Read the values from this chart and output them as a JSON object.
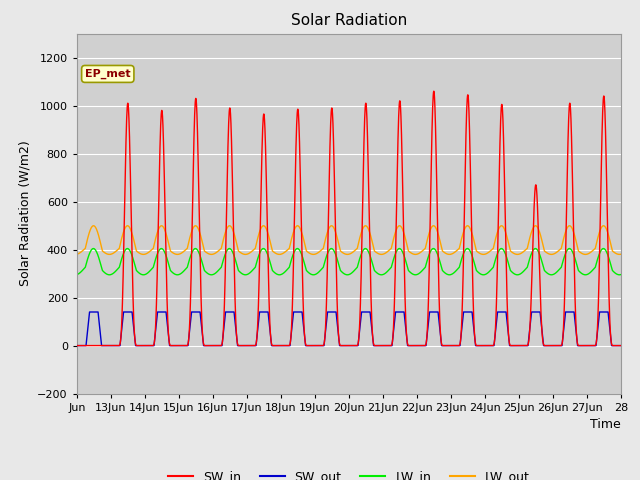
{
  "title": "Solar Radiation",
  "ylabel": "Solar Radiation (W/m2)",
  "xlabel": "Time",
  "ylim": [
    -200,
    1300
  ],
  "yticks": [
    -200,
    0,
    200,
    400,
    600,
    800,
    1000,
    1200
  ],
  "xtick_labels": [
    "Jun",
    "13Jun",
    "14Jun",
    "15Jun",
    "16Jun",
    "17Jun",
    "18Jun",
    "19Jun",
    "20Jun",
    "21Jun",
    "22Jun",
    "23Jun",
    "24Jun",
    "25Jun",
    "26Jun",
    "27Jun",
    "28"
  ],
  "xtick_positions": [
    12,
    13,
    14,
    15,
    16,
    17,
    18,
    19,
    20,
    21,
    22,
    23,
    24,
    25,
    26,
    27,
    28
  ],
  "colors": {
    "SW_in": "#ff0000",
    "SW_out": "#0000cc",
    "LW_in": "#00ee00",
    "LW_out": "#ffa500"
  },
  "sw_in_peaks": [
    0,
    1010,
    980,
    1030,
    990,
    965,
    985,
    990,
    1010,
    1020,
    1060,
    1045,
    1005,
    670,
    1010,
    1040
  ],
  "annotation_text": "EP_met",
  "fig_facecolor": "#e8e8e8",
  "ax_facecolor": "#d0d0d0",
  "grid_color": "#ffffff",
  "title_fontsize": 11,
  "label_fontsize": 9,
  "tick_fontsize": 8
}
